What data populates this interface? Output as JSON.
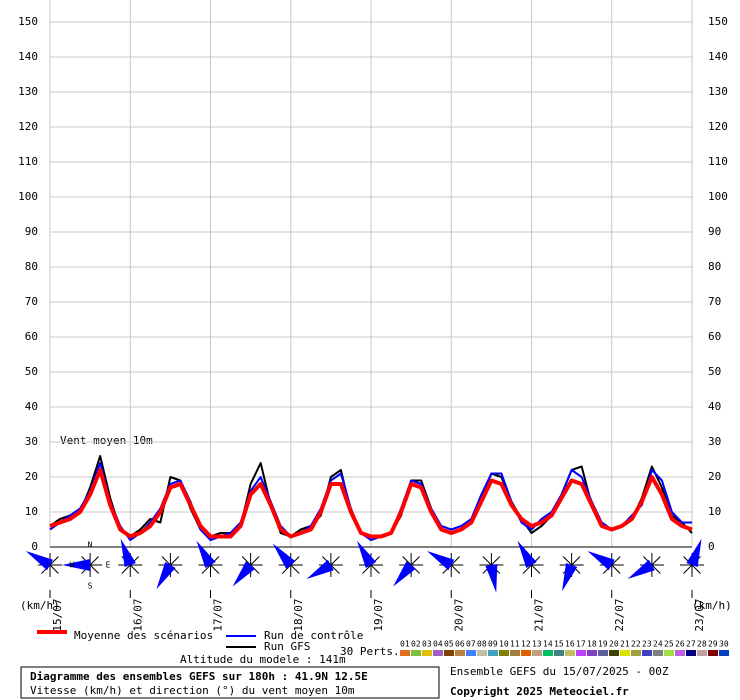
{
  "chart_data": {
    "type": "line",
    "title": "Vent moyen 10m",
    "y_unit": "(km/h)",
    "x": [
      0,
      3,
      6,
      9,
      12,
      15,
      18,
      21,
      24,
      27,
      30,
      33,
      36,
      39,
      42,
      45,
      48,
      51,
      54,
      57,
      60,
      63,
      66,
      69,
      72,
      75,
      78,
      81,
      84,
      87,
      90,
      93,
      96,
      99,
      102,
      105,
      108,
      111,
      114,
      117,
      120,
      123,
      126,
      129,
      132,
      135,
      138,
      141,
      144,
      147,
      150,
      153,
      156,
      159,
      162,
      165,
      168,
      171,
      174,
      177,
      180,
      183,
      186,
      189,
      192
    ],
    "xlim": [
      0,
      192
    ],
    "xticks": [
      {
        "value": 0,
        "label": "15/07"
      },
      {
        "value": 24,
        "label": "16/07"
      },
      {
        "value": 48,
        "label": "17/07"
      },
      {
        "value": 72,
        "label": "18/07"
      },
      {
        "value": 96,
        "label": "19/07"
      },
      {
        "value": 120,
        "label": "20/07"
      },
      {
        "value": 144,
        "label": "21/07"
      },
      {
        "value": 168,
        "label": "22/07"
      },
      {
        "value": 192,
        "label": "23/07"
      }
    ],
    "ylim": [
      0,
      150
    ],
    "yticks": [
      0,
      10,
      20,
      30,
      40,
      50,
      60,
      70,
      80,
      90,
      100,
      110,
      120,
      130,
      140,
      150
    ],
    "grid": true,
    "series": [
      {
        "name": "Run GFS",
        "color": "#000000",
        "width": 2,
        "values": [
          6,
          8,
          9,
          10,
          17,
          26,
          14,
          5,
          3,
          5,
          8,
          7,
          20,
          19,
          11,
          5,
          3,
          4,
          4,
          6,
          18,
          24,
          12,
          4,
          3,
          5,
          6,
          9,
          20,
          22,
          10,
          4,
          3,
          3,
          4,
          9,
          19,
          19,
          11,
          5,
          4,
          5,
          7,
          14,
          21,
          20,
          13,
          8,
          4,
          6,
          9,
          15,
          22,
          23,
          12,
          6,
          5,
          6,
          8,
          14,
          23,
          17,
          9,
          7,
          4
        ]
      },
      {
        "name": "Run de contrôle",
        "color": "#0000ff",
        "width": 2,
        "values": [
          5,
          7,
          9,
          11,
          16,
          24,
          13,
          6,
          2,
          4,
          7,
          11,
          18,
          19,
          13,
          5,
          2,
          3,
          4,
          7,
          16,
          20,
          13,
          6,
          3,
          4,
          6,
          11,
          19,
          21,
          11,
          4,
          2,
          3,
          4,
          11,
          19,
          18,
          11,
          6,
          5,
          6,
          8,
          15,
          21,
          21,
          13,
          7,
          5,
          8,
          10,
          15,
          22,
          20,
          13,
          7,
          5,
          6,
          9,
          12,
          22,
          19,
          10,
          7,
          7
        ]
      },
      {
        "name": "Moyenne des scénarios",
        "color": "#ff0000",
        "width": 4,
        "values": [
          6,
          7,
          8,
          10,
          15,
          22,
          12,
          5,
          3,
          4,
          6,
          10,
          17,
          18,
          12,
          6,
          3,
          3,
          3,
          6,
          15,
          18,
          12,
          5,
          3,
          4,
          5,
          10,
          18,
          18,
          10,
          4,
          3,
          3,
          4,
          10,
          18,
          17,
          10,
          5,
          4,
          5,
          7,
          13,
          19,
          18,
          12,
          8,
          6,
          7,
          9,
          14,
          19,
          18,
          12,
          6,
          5,
          6,
          8,
          13,
          20,
          15,
          8,
          6,
          5
        ]
      }
    ],
    "perturbations_label": "30 Perts.",
    "perturbations": [
      {
        "name": "01",
        "color": "#e07020"
      },
      {
        "name": "02",
        "color": "#80c040"
      },
      {
        "name": "03",
        "color": "#e0c000"
      },
      {
        "name": "04",
        "color": "#a060c0"
      },
      {
        "name": "05",
        "color": "#804000"
      },
      {
        "name": "06",
        "color": "#c08040"
      },
      {
        "name": "07",
        "color": "#4080ff"
      },
      {
        "name": "08",
        "color": "#c0c0a0"
      },
      {
        "name": "09",
        "color": "#40a0c0"
      },
      {
        "name": "10",
        "color": "#808000"
      },
      {
        "name": "11",
        "color": "#a08040"
      },
      {
        "name": "12",
        "color": "#e06000"
      },
      {
        "name": "13",
        "color": "#c0a080"
      },
      {
        "name": "14",
        "color": "#00c060"
      },
      {
        "name": "15",
        "color": "#408080"
      },
      {
        "name": "16",
        "color": "#c0c060"
      },
      {
        "name": "17",
        "color": "#c040ff"
      },
      {
        "name": "18",
        "color": "#8040c0"
      },
      {
        "name": "19",
        "color": "#6060a0"
      },
      {
        "name": "20",
        "color": "#404000"
      },
      {
        "name": "21",
        "color": "#e0e000"
      },
      {
        "name": "22",
        "color": "#a0a040"
      },
      {
        "name": "23",
        "color": "#4040c0"
      },
      {
        "name": "24",
        "color": "#808080"
      },
      {
        "name": "25",
        "color": "#a0e040"
      },
      {
        "name": "26",
        "color": "#c060e0"
      },
      {
        "name": "27",
        "color": "#000080"
      },
      {
        "name": "28",
        "color": "#c0a0a0"
      },
      {
        "name": "29",
        "color": "#800000"
      },
      {
        "name": "30",
        "color": "#0040c0"
      }
    ],
    "wind_direction": {
      "x": [
        0,
        12,
        24,
        36,
        48,
        60,
        72,
        84,
        96,
        108,
        120,
        132,
        144,
        156,
        168,
        180,
        192
      ],
      "values": [
        300,
        270,
        340,
        210,
        330,
        220,
        320,
        240,
        330,
        220,
        300,
        170,
        330,
        200,
        300,
        240,
        20
      ],
      "color": "#0000ff",
      "compass": [
        "N",
        "E",
        "S",
        "W"
      ]
    },
    "altitude": "Altitude du modele : 141m",
    "box_title": "Diagramme des ensembles GEFS sur 180h : 41.9N 12.5E",
    "box_subtitle": "Vitesse (km/h) et direction (°) du vent moyen 10m",
    "run_info": "Ensemble GEFS du 15/07/2025 - 00Z",
    "copyright": "Copyright 2025 Meteociel.fr"
  }
}
